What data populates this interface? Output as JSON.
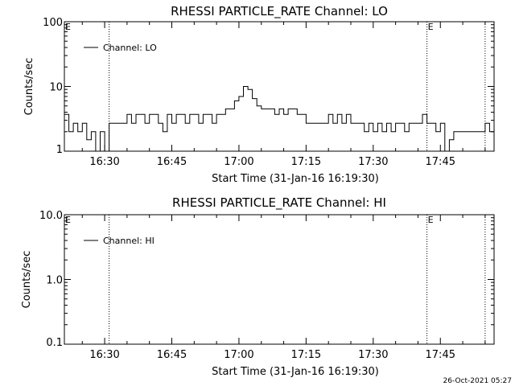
{
  "chart_data": [
    {
      "type": "line",
      "title": "RHESSI PARTICLE_RATE Channel: LO",
      "xlabel": "Start Time (31-Jan-16 16:19:30)",
      "ylabel": "Counts/sec",
      "y_scale": "log",
      "ylim": [
        1,
        100
      ],
      "y_ticks": [
        {
          "value": 1,
          "label": "1"
        },
        {
          "value": 10,
          "label": "10"
        },
        {
          "value": 100,
          "label": "100"
        }
      ],
      "xlim": [
        "16:21",
        "17:57"
      ],
      "x_ticks": [
        "16:30",
        "16:45",
        "17:00",
        "17:15",
        "17:30",
        "17:45"
      ],
      "vertical_lines": [
        "16:31",
        "17:42",
        "17:55"
      ],
      "markers": [
        {
          "x": "16:21",
          "label": "E"
        },
        {
          "x": "17:42",
          "label": "E"
        }
      ],
      "legend": {
        "position": "top-left",
        "label": "Channel: LO"
      },
      "series": [
        {
          "name": "Channel: LO",
          "x": [
            "16:21",
            "16:22",
            "16:23",
            "16:24",
            "16:25",
            "16:26",
            "16:27",
            "16:28",
            "16:29",
            "16:30",
            "16:31",
            "16:32",
            "16:33",
            "16:34",
            "16:35",
            "16:36",
            "16:37",
            "16:38",
            "16:39",
            "16:40",
            "16:41",
            "16:42",
            "16:43",
            "16:44",
            "16:45",
            "16:46",
            "16:47",
            "16:48",
            "16:49",
            "16:50",
            "16:51",
            "16:52",
            "16:53",
            "16:54",
            "16:55",
            "16:56",
            "16:57",
            "16:58",
            "16:59",
            "17:00",
            "17:01",
            "17:02",
            "17:03",
            "17:04",
            "17:05",
            "17:06",
            "17:07",
            "17:08",
            "17:09",
            "17:10",
            "17:11",
            "17:12",
            "17:13",
            "17:14",
            "17:15",
            "17:16",
            "17:17",
            "17:18",
            "17:19",
            "17:20",
            "17:21",
            "17:22",
            "17:23",
            "17:24",
            "17:25",
            "17:26",
            "17:27",
            "17:28",
            "17:29",
            "17:30",
            "17:31",
            "17:32",
            "17:33",
            "17:34",
            "17:35",
            "17:36",
            "17:37",
            "17:38",
            "17:39",
            "17:40",
            "17:41",
            "17:42",
            "17:43",
            "17:44",
            "17:45",
            "17:46",
            "17:47",
            "17:48",
            "17:49",
            "17:50",
            "17:51",
            "17:52",
            "17:53",
            "17:54",
            "17:55",
            "17:56"
          ],
          "y": [
            3.7,
            2,
            2.7,
            2,
            2.7,
            1.5,
            2,
            1,
            2,
            1,
            2.7,
            2.7,
            2.7,
            2.7,
            3.7,
            2.7,
            3.7,
            3.7,
            2.7,
            3.7,
            3.7,
            2.7,
            2,
            3.7,
            2.7,
            3.7,
            3.7,
            2.7,
            3.7,
            3.7,
            2.7,
            3.7,
            3.7,
            2.7,
            3.7,
            3.7,
            4.5,
            4.5,
            6,
            7,
            10,
            9,
            6.5,
            5,
            4.5,
            4.5,
            4.5,
            3.7,
            4.5,
            3.7,
            4.5,
            4.5,
            3.7,
            3.7,
            2.7,
            2.7,
            2.7,
            2.7,
            2.7,
            3.7,
            2.7,
            3.7,
            2.7,
            3.7,
            2.7,
            2.7,
            2.7,
            2,
            2.7,
            2,
            2.7,
            2,
            2.7,
            2,
            2.7,
            2.7,
            2,
            2.7,
            2.7,
            2.7,
            3.7,
            2.7,
            2.7,
            2,
            2.7,
            1,
            1.5,
            2,
            2,
            2,
            2,
            2,
            2,
            2,
            2.7,
            2
          ]
        }
      ]
    },
    {
      "type": "line",
      "title": "RHESSI PARTICLE_RATE Channel: HI",
      "xlabel": "Start Time (31-Jan-16 16:19:30)",
      "ylabel": "Counts/sec",
      "y_scale": "log",
      "ylim": [
        0.1,
        10
      ],
      "y_ticks": [
        {
          "value": 0.1,
          "label": "0.1"
        },
        {
          "value": 1,
          "label": "1.0"
        },
        {
          "value": 10,
          "label": "10.0"
        }
      ],
      "xlim": [
        "16:21",
        "17:57"
      ],
      "x_ticks": [
        "16:30",
        "16:45",
        "17:00",
        "17:15",
        "17:30",
        "17:45"
      ],
      "vertical_lines": [
        "16:31",
        "17:42",
        "17:55"
      ],
      "markers": [
        {
          "x": "16:21",
          "label": "E"
        },
        {
          "x": "17:42",
          "label": "E"
        }
      ],
      "legend": {
        "position": "top-left",
        "label": "Channel: HI"
      },
      "series": [
        {
          "name": "Channel: HI",
          "x": [],
          "y": []
        }
      ]
    }
  ],
  "footer": {
    "timestamp": "26-Oct-2021 05:27"
  }
}
